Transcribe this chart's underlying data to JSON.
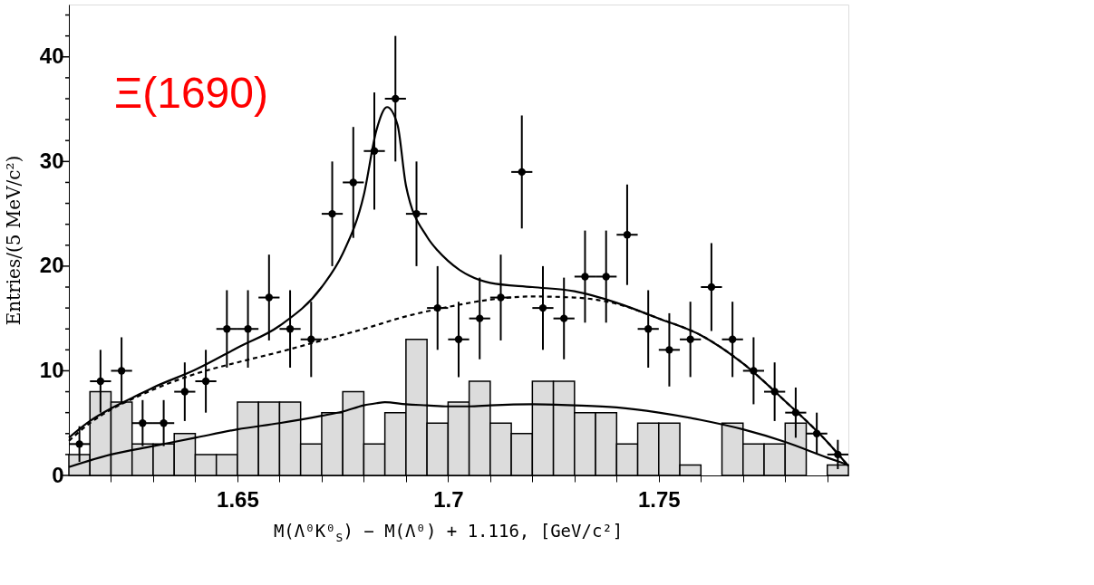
{
  "chart_data": {
    "type": "scatter",
    "xlabel": "M(Λ⁰K⁰$_{S}$) − M(Λ⁰) + 1.116,   [GeV/c²]",
    "ylabel": "Entries/(5 MeV/c²)",
    "annotations": [
      "Ξ(1690)"
    ],
    "xlim": [
      1.61,
      1.795
    ],
    "ylim": [
      0,
      45
    ],
    "xticks": [
      {
        "value": 1.62,
        "label": null
      },
      {
        "value": 1.63,
        "label": null
      },
      {
        "value": 1.64,
        "label": null
      },
      1.65,
      {
        "value": 1.66,
        "label": null
      },
      {
        "value": 1.67,
        "label": null
      },
      {
        "value": 1.68,
        "label": null
      },
      {
        "value": 1.69,
        "label": null
      },
      1.7,
      {
        "value": 1.71,
        "label": null
      },
      {
        "value": 1.72,
        "label": null
      },
      {
        "value": 1.73,
        "label": null
      },
      {
        "value": 1.74,
        "label": null
      },
      1.75,
      {
        "value": 1.76,
        "label": null
      },
      {
        "value": 1.77,
        "label": null
      },
      {
        "value": 1.78,
        "label": null
      },
      {
        "value": 1.79,
        "label": null
      }
    ],
    "yticks": [
      0,
      {
        "value": 2,
        "label": null
      },
      {
        "value": 4,
        "label": null
      },
      {
        "value": 6,
        "label": null
      },
      {
        "value": 8,
        "label": null
      },
      10,
      {
        "value": 12,
        "label": null
      },
      {
        "value": 14,
        "label": null
      },
      {
        "value": 16,
        "label": null
      },
      {
        "value": 18,
        "label": null
      },
      20,
      {
        "value": 22,
        "label": null
      },
      {
        "value": 24,
        "label": null
      },
      {
        "value": 26,
        "label": null
      },
      {
        "value": 28,
        "label": null
      },
      30,
      {
        "value": 32,
        "label": null
      },
      {
        "value": 34,
        "label": null
      },
      {
        "value": 36,
        "label": null
      },
      {
        "value": 38,
        "label": null
      },
      40,
      {
        "value": 42,
        "label": null
      },
      {
        "value": 44,
        "label": null
      }
    ],
    "grid": false,
    "series": [
      {
        "type": "histogram",
        "color": "#dcdcdc",
        "bins": [
          1.61,
          1.615,
          1.62,
          1.625,
          1.63,
          1.635,
          1.64,
          1.645,
          1.65,
          1.655,
          1.66,
          1.665,
          1.67,
          1.675,
          1.68,
          1.685,
          1.69,
          1.695,
          1.7,
          1.705,
          1.71,
          1.715,
          1.72,
          1.725,
          1.73,
          1.735,
          1.74,
          1.745,
          1.75,
          1.755,
          1.76,
          1.765,
          1.77,
          1.775,
          1.78,
          1.785,
          1.79,
          1.795
        ],
        "values": [
          2,
          8,
          7,
          3,
          3,
          4,
          2,
          2,
          7,
          7,
          7,
          3,
          6,
          8,
          3,
          6,
          13,
          5,
          7,
          9,
          5,
          4,
          9,
          9,
          6,
          6,
          3,
          5,
          5,
          1,
          0,
          5,
          3,
          3,
          5,
          0,
          1
        ]
      },
      {
        "type": "line",
        "color": "#000000",
        "line_style": "solid",
        "marker": "none",
        "x": [
          1.61,
          1.62,
          1.63,
          1.64,
          1.65,
          1.66,
          1.67,
          1.675,
          1.68,
          1.683,
          1.685,
          1.69,
          1.695,
          1.7,
          1.705,
          1.71,
          1.72,
          1.73,
          1.74,
          1.75,
          1.76,
          1.77,
          1.78,
          1.79,
          1.795
        ],
        "values": [
          0.8,
          2,
          2.8,
          3.6,
          4.4,
          5,
          5.7,
          6.1,
          6.7,
          6.9,
          7,
          6.8,
          6.7,
          6.6,
          6.6,
          6.7,
          6.8,
          6.7,
          6.5,
          6,
          5.3,
          4.4,
          3.2,
          1.7,
          1
        ]
      },
      {
        "type": "line",
        "color": "#000000",
        "line_style": "dashed",
        "marker": "none",
        "x": [
          1.61,
          1.615,
          1.62,
          1.625,
          1.63,
          1.64,
          1.65,
          1.66,
          1.67,
          1.68,
          1.69,
          1.7,
          1.71,
          1.72,
          1.73,
          1.74,
          1.75,
          1.76,
          1.77,
          1.78,
          1.79,
          1.795
        ],
        "values": [
          3.3,
          5,
          6.3,
          7.3,
          8.2,
          9.7,
          10.8,
          11.8,
          12.9,
          14,
          15.2,
          16.1,
          16.8,
          17.1,
          17,
          16.4,
          15,
          13.4,
          10.7,
          7.1,
          3.2,
          0.9
        ]
      },
      {
        "type": "line",
        "color": "#000000",
        "line_style": "solid",
        "marker": "none",
        "x": [
          1.61,
          1.615,
          1.62,
          1.625,
          1.63,
          1.64,
          1.65,
          1.66,
          1.67,
          1.675,
          1.68,
          1.683,
          1.6855,
          1.688,
          1.69,
          1.695,
          1.6975,
          1.7,
          1.7025,
          1.705,
          1.71,
          1.72,
          1.73,
          1.74,
          1.75,
          1.76,
          1.77,
          1.78,
          1.79,
          1.795
        ],
        "values": [
          3.6,
          5.2,
          6.4,
          7.4,
          8.4,
          10.1,
          12.2,
          14.3,
          18,
          21.2,
          26.8,
          33,
          35.2,
          33.5,
          27.7,
          22.8,
          21.5,
          20.5,
          19.7,
          19.1,
          18.4,
          18,
          17.6,
          16.5,
          15,
          13.4,
          10.7,
          7.1,
          3.2,
          0.9
        ]
      },
      {
        "color": "#000000",
        "marker": "circle",
        "x": [
          1.6125,
          1.6175,
          1.6225,
          1.6275,
          1.6325,
          1.6375,
          1.6425,
          1.6475,
          1.6525,
          1.6575,
          1.6625,
          1.6675,
          1.6725,
          1.6775,
          1.6825,
          1.6875,
          1.6925,
          1.6975,
          1.7025,
          1.7075,
          1.7125,
          1.7175,
          1.7225,
          1.7275,
          1.7325,
          1.7375,
          1.7425,
          1.7475,
          1.7525,
          1.7575,
          1.7625,
          1.7675,
          1.7725,
          1.7775,
          1.7825,
          1.7875,
          1.7925
        ],
        "values": [
          3,
          9,
          10,
          5,
          5,
          8,
          9,
          14,
          14,
          17,
          14,
          13,
          25,
          28,
          31,
          36,
          25,
          16,
          13,
          15,
          17,
          29,
          16,
          15,
          19,
          19,
          23,
          14,
          12,
          13,
          18,
          13,
          10,
          8,
          6,
          4,
          2
        ],
        "errors": [
          1.7,
          3,
          3.2,
          2.2,
          2.2,
          2.8,
          3,
          3.7,
          3.7,
          4.1,
          3.7,
          3.6,
          5,
          5.3,
          5.6,
          6,
          5,
          4,
          3.6,
          3.9,
          4.1,
          5.4,
          4,
          3.9,
          4.4,
          4.4,
          4.8,
          3.7,
          3.5,
          3.6,
          4.2,
          3.6,
          3.2,
          2.8,
          2.4,
          2,
          1.4
        ],
        "xerrors": [
          0.0025,
          0.0025,
          0.0025,
          0.0025,
          0.0025,
          0.0025,
          0.0025,
          0.0025,
          0.0025,
          0.0025,
          0.0025,
          0.0025,
          0.0025,
          0.0025,
          0.0025,
          0.0025,
          0.0025,
          0.0025,
          0.0025,
          0.0025,
          0.0025,
          0.0025,
          0.0025,
          0.0025,
          0.0025,
          0.0025,
          0.0025,
          0.0025,
          0.0025,
          0.0025,
          0.0025,
          0.0025,
          0.0025,
          0.0025,
          0.0025,
          0.0025,
          0.0025
        ]
      }
    ]
  }
}
